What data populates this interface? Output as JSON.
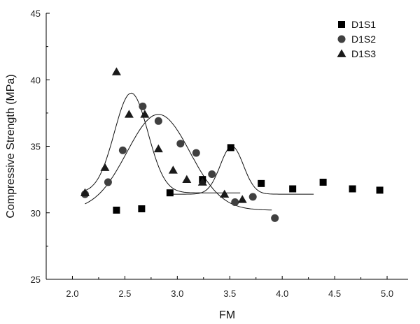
{
  "chart_data": {
    "type": "scatter",
    "xlabel": "FM",
    "ylabel": "Compressive Strength (MPa)",
    "xlim": [
      1.75,
      5.2
    ],
    "ylim": [
      25,
      45
    ],
    "xticks": [
      "2.0",
      "2.5",
      "3.0",
      "3.5",
      "4.0",
      "4.5",
      "5.0"
    ],
    "yticks": [
      "25",
      "30",
      "35",
      "40",
      "45"
    ],
    "legend_position": "top-right",
    "grid": false,
    "series": [
      {
        "name": "D1S1",
        "marker": "square",
        "color": "#000000",
        "points": [
          {
            "x": 2.42,
            "y": 30.2
          },
          {
            "x": 2.66,
            "y": 30.3
          },
          {
            "x": 2.93,
            "y": 31.5
          },
          {
            "x": 3.24,
            "y": 32.5
          },
          {
            "x": 3.51,
            "y": 34.9
          },
          {
            "x": 3.8,
            "y": 32.2
          },
          {
            "x": 4.1,
            "y": 31.8
          },
          {
            "x": 4.39,
            "y": 32.3
          },
          {
            "x": 4.67,
            "y": 31.8
          },
          {
            "x": 4.93,
            "y": 31.7
          }
        ],
        "fit": {
          "base": 31.4,
          "amp": 3.6,
          "center": 3.52,
          "width": 0.11,
          "x_range": [
            2.9,
            4.3
          ]
        }
      },
      {
        "name": "D1S2",
        "marker": "circle",
        "color": "#404040",
        "points": [
          {
            "x": 2.12,
            "y": 31.4
          },
          {
            "x": 2.34,
            "y": 32.3
          },
          {
            "x": 2.48,
            "y": 34.7
          },
          {
            "x": 2.67,
            "y": 38.0
          },
          {
            "x": 2.82,
            "y": 36.9
          },
          {
            "x": 3.03,
            "y": 35.2
          },
          {
            "x": 3.18,
            "y": 34.5
          },
          {
            "x": 3.33,
            "y": 32.9
          },
          {
            "x": 3.55,
            "y": 30.8
          },
          {
            "x": 3.72,
            "y": 31.2
          },
          {
            "x": 3.93,
            "y": 29.6
          }
        ],
        "fit": {
          "base": 30.2,
          "amp": 7.2,
          "center": 2.82,
          "width": 0.3,
          "x_range": [
            2.12,
            3.9
          ]
        }
      },
      {
        "name": "D1S3",
        "marker": "triangle",
        "color": "#1a1a1a",
        "points": [
          {
            "x": 2.12,
            "y": 31.5
          },
          {
            "x": 2.31,
            "y": 33.4
          },
          {
            "x": 2.42,
            "y": 40.6
          },
          {
            "x": 2.54,
            "y": 37.4
          },
          {
            "x": 2.69,
            "y": 37.4
          },
          {
            "x": 2.82,
            "y": 34.8
          },
          {
            "x": 2.96,
            "y": 33.2
          },
          {
            "x": 3.09,
            "y": 32.5
          },
          {
            "x": 3.24,
            "y": 32.3
          },
          {
            "x": 3.45,
            "y": 31.4
          },
          {
            "x": 3.62,
            "y": 31.0
          }
        ],
        "fit": {
          "base": 31.5,
          "amp": 7.5,
          "center": 2.56,
          "width": 0.16,
          "x_range": [
            2.12,
            3.6
          ]
        }
      }
    ]
  }
}
